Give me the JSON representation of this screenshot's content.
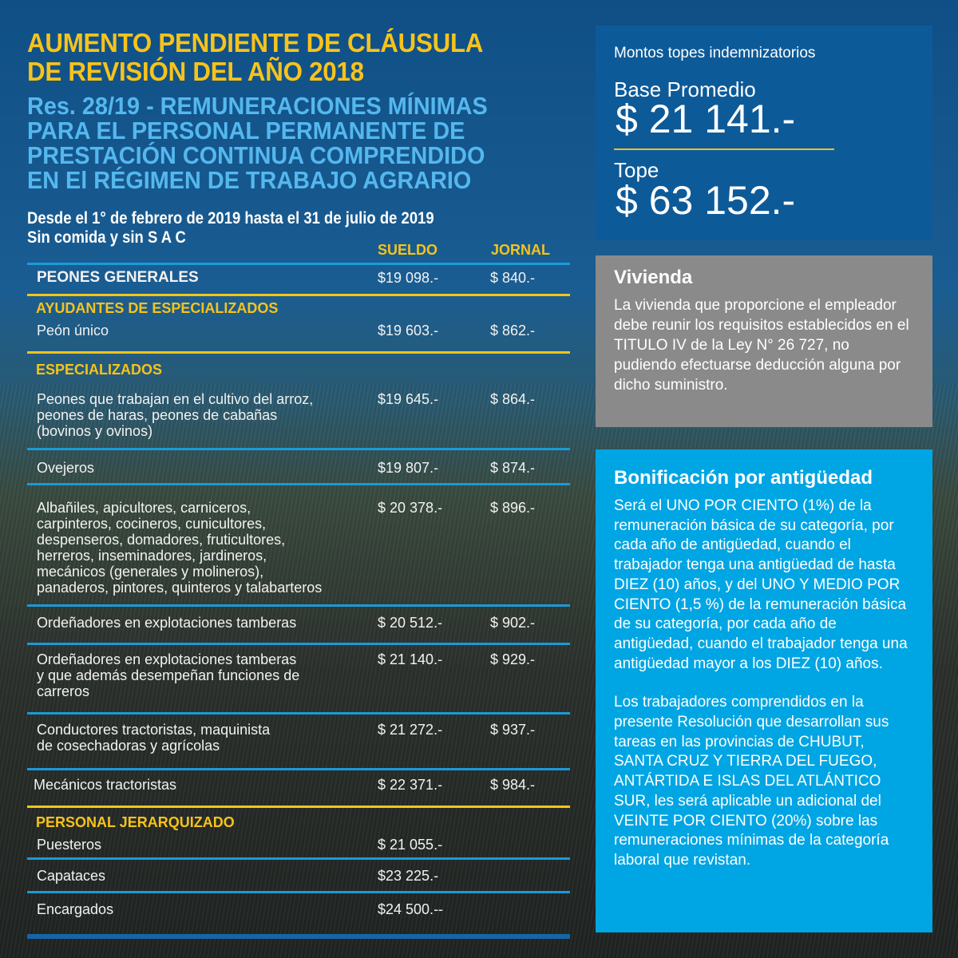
{
  "title": {
    "line1": "AUMENTO PENDIENTE DE CLÁUSULA",
    "line2": "DE REVISIÓN DEL AÑO 2018"
  },
  "subtitle": [
    "Res. 28/19 - REMUNERACIONES MÍNIMAS",
    "PARA EL PERSONAL PERMANENTE DE",
    "PRESTACIÓN CONTINUA COMPRENDIDO",
    "EN El RÉGIMEN DE TRABAJO AGRARIO"
  ],
  "period": {
    "line1": "Desde el 1° de febrero de 2019 hasta el 31 de julio de 2019",
    "line2": "Sin comida y sin S A C"
  },
  "table": {
    "headers": {
      "sueldo": "SUELDO",
      "jornal": "JORNAL"
    },
    "sections": {
      "ayudantes": "AYUDANTES DE ESPECIALIZADOS",
      "especializados": "ESPECIALIZADOS",
      "jerarquizado": "PERSONAL JERARQUIZADO"
    },
    "rows": [
      {
        "label": "PEONES GENERALES",
        "sueldo": "$19 098.-",
        "jornal": "$ 840.-"
      },
      {
        "label": "Peón único",
        "sueldo": "$19 603.-",
        "jornal": "$ 862.-"
      },
      {
        "label": "Peones que trabajan en el cultivo del arroz,\npeones de haras, peones de cabañas\n(bovinos y ovinos)",
        "sueldo": "$19 645.-",
        "jornal": "$ 864.-"
      },
      {
        "label": "Ovejeros",
        "sueldo": "$19 807.-",
        "jornal": "$ 874.-"
      },
      {
        "label": "Albañiles, apicultores, carniceros,\ncarpinteros, cocineros, cunicultores,\ndespenseros, domadores, fruticultores,\nherreros, inseminadores, jardineros,\nmecánicos (generales y molineros),\npanaderos, pintores, quinteros y talabarteros",
        "sueldo": "$ 20 378.-",
        "jornal": "$ 896.-"
      },
      {
        "label": "Ordeñadores en explotaciones tamberas",
        "sueldo": "$ 20 512.-",
        "jornal": "$ 902.-"
      },
      {
        "label": "Ordeñadores en explotaciones tamberas\ny que además desempeñan funciones de\ncarreros",
        "sueldo": "$ 21 140.-",
        "jornal": "$ 929.-"
      },
      {
        "label": "Conductores tractoristas, maquinista\nde cosechadoras y agrícolas",
        "sueldo": "$ 21 272.-",
        "jornal": "$ 937.-"
      },
      {
        "label": "Mecánicos tractoristas",
        "sueldo": "$ 22 371.-",
        "jornal": "$ 984.-"
      },
      {
        "label": "Puesteros",
        "sueldo": "$ 21 055.-"
      },
      {
        "label": "Capataces",
        "sueldo": "$23 225.-"
      },
      {
        "label": "Encargados",
        "sueldo": "$24 500.--"
      }
    ]
  },
  "topes": {
    "heading": "Montos topes indemnizatorios",
    "base_label": "Base Promedio",
    "base_value": "$ 21 141.-",
    "tope_label": "Tope",
    "tope_value": "$ 63 152.-"
  },
  "vivienda": {
    "heading": "Vivienda",
    "body": "La vivienda que proporcione el empleador debe reunir los requisitos establecidos en el TITULO IV de la Ley N° 26 727, no pudiendo efectuarse deducción alguna por dicho suministro."
  },
  "bonificacion": {
    "heading": "Bonificación por antigüedad",
    "p1": "Será el UNO POR CIENTO (1%) de la remuneración básica de su categoría, por cada año de antigüedad, cuando el trabajador tenga una antigüedad de hasta DIEZ (10) años, y del UNO Y MEDIO POR CIENTO (1,5 %) de la remuneración básica de su categoría, por cada año de antigüedad, cuando el trabajador tenga una antigüedad mayor a los DIEZ (10) años.",
    "p2": "Los trabajadores comprendidos en la presente Resolución que desarrollan sus tareas en las provincias de CHUBUT, SANTA CRUZ Y TIERRA DEL FUEGO, ANTÁRTIDA E ISLAS DEL ATLÁNTICO SUR, les será aplicable un adicional del VEINTE POR CIENTO (20%) sobre las remuneraciones mínimas de la categoría laboral que revistan."
  },
  "colors": {
    "yellow": "#f7c31b",
    "light_blue": "#54b8ee",
    "box_blue": "#0d5a99",
    "box_grey": "#8a8a8a",
    "box_cyan": "#00a5e3"
  }
}
